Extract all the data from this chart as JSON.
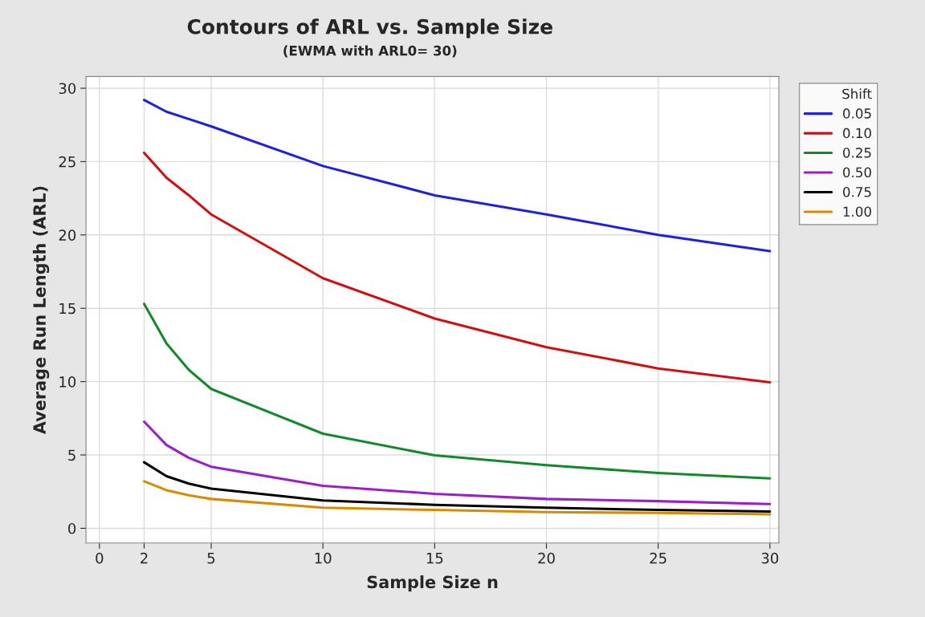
{
  "chart_data": {
    "type": "line",
    "title": "Contours of ARL vs. Sample Size",
    "subtitle": "(EWMA with ARL0= 30)",
    "xlabel": "Sample Size n",
    "ylabel": "Average Run Length (ARL)",
    "legend_title": "Shift",
    "x": [
      2,
      3,
      4,
      5,
      10,
      15,
      20,
      25,
      30
    ],
    "series": [
      {
        "name": "0.05",
        "color": "#1f1fe0",
        "values": [
          29.2,
          28.4,
          27.9,
          27.4,
          24.7,
          22.7,
          21.4,
          20.0,
          18.9
        ]
      },
      {
        "name": "0.10",
        "color": "#d01010",
        "values": [
          25.6,
          23.9,
          22.7,
          21.4,
          17.05,
          14.3,
          12.35,
          10.9,
          9.95
        ]
      },
      {
        "name": "0.25",
        "color": "#128a2a",
        "values": [
          15.3,
          12.6,
          10.8,
          9.5,
          6.45,
          4.97,
          4.3,
          3.77,
          3.4
        ]
      },
      {
        "name": "0.50",
        "color": "#9a1fc8",
        "values": [
          7.27,
          5.68,
          4.8,
          4.2,
          2.9,
          2.35,
          2.0,
          1.85,
          1.65
        ]
      },
      {
        "name": "0.75",
        "color": "#000000",
        "values": [
          4.5,
          3.55,
          3.05,
          2.7,
          1.9,
          1.6,
          1.4,
          1.25,
          1.15
        ]
      },
      {
        "name": "1.00",
        "color": "#d98a00",
        "values": [
          3.2,
          2.6,
          2.25,
          2.0,
          1.4,
          1.25,
          1.1,
          1.05,
          0.95
        ]
      }
    ],
    "xlim": [
      -0.6,
      30.4
    ],
    "ylim": [
      -1.0,
      30.8
    ],
    "xticks": [
      0,
      2,
      5,
      10,
      15,
      20,
      25,
      30
    ],
    "yticks": [
      0,
      5,
      10,
      15,
      20,
      25,
      30
    ],
    "grid": true,
    "legend": "top right",
    "line_style": "solid",
    "marker": "none"
  }
}
